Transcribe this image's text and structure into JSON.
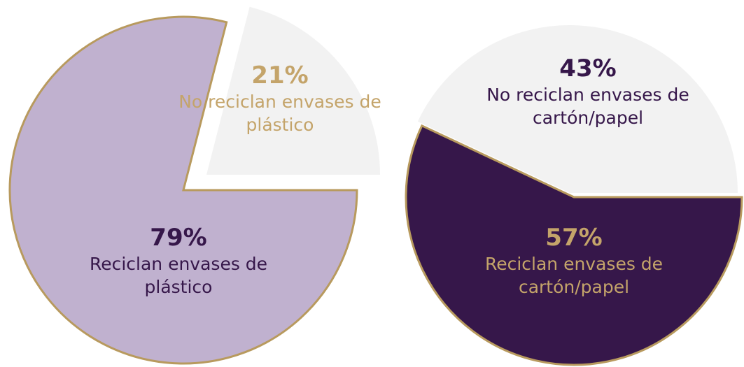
{
  "chart_data": [
    {
      "type": "pie",
      "categories": [
        "Reciclan envases de plástico",
        "No reciclan envases de plástico"
      ],
      "values": [
        79,
        21
      ],
      "value_labels": [
        "79%",
        "21%"
      ],
      "colors": [
        "#c0b1cf",
        "#f2f2f2"
      ]
    },
    {
      "type": "pie",
      "categories": [
        "Reciclan envases de cartón/papel",
        "No reciclan envases de cartón/papel"
      ],
      "values": [
        57,
        43
      ],
      "value_labels": [
        "57%",
        "43%"
      ],
      "colors": [
        "#36174a",
        "#f2f2f2"
      ]
    }
  ]
}
